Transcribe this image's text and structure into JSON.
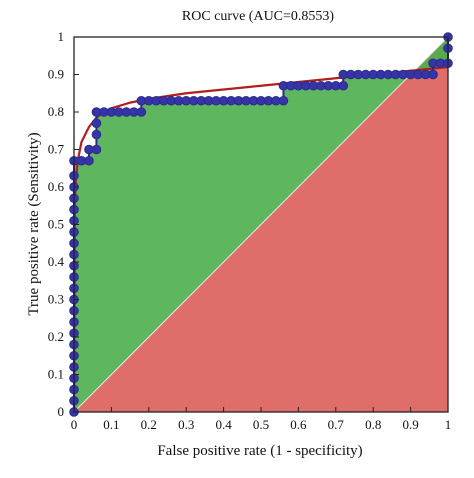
{
  "chart_data": {
    "type": "line",
    "title": "ROC curve (AUC=0.8553)",
    "xlabel": "False positive rate (1 - specificity)",
    "ylabel": "True positive rate (Sensitivity)",
    "xlim": [
      0,
      1
    ],
    "ylim": [
      0,
      1
    ],
    "x_ticks": [
      "0",
      "0.1",
      "0.2",
      "0.3",
      "0.4",
      "0.5",
      "0.6",
      "0.7",
      "0.8",
      "0.9",
      "1"
    ],
    "y_ticks": [
      "0",
      "0.1",
      "0.2",
      "0.3",
      "0.4",
      "0.5",
      "0.6",
      "0.7",
      "0.8",
      "0.9",
      "1"
    ],
    "grid": false,
    "colors": {
      "empirical": "#2b2a8c",
      "marker_fill": "#3535a8",
      "fitted": "#b01e1e",
      "area_above_diagonal": "#4cae4c",
      "area_below_diagonal": "#d9534f"
    },
    "series": [
      {
        "type": "step_scatter",
        "points": [
          [
            0,
            0
          ],
          [
            0,
            0.03
          ],
          [
            0,
            0.06
          ],
          [
            0,
            0.09
          ],
          [
            0,
            0.12
          ],
          [
            0,
            0.15
          ],
          [
            0,
            0.18
          ],
          [
            0,
            0.21
          ],
          [
            0,
            0.24
          ],
          [
            0,
            0.27
          ],
          [
            0,
            0.3
          ],
          [
            0,
            0.33
          ],
          [
            0,
            0.36
          ],
          [
            0,
            0.39
          ],
          [
            0,
            0.42
          ],
          [
            0,
            0.45
          ],
          [
            0,
            0.48
          ],
          [
            0,
            0.51
          ],
          [
            0,
            0.54
          ],
          [
            0,
            0.57
          ],
          [
            0,
            0.6
          ],
          [
            0,
            0.63
          ],
          [
            0,
            0.67
          ],
          [
            0.02,
            0.67
          ],
          [
            0.04,
            0.67
          ],
          [
            0.04,
            0.7
          ],
          [
            0.06,
            0.7
          ],
          [
            0.06,
            0.74
          ],
          [
            0.06,
            0.77
          ],
          [
            0.06,
            0.8
          ],
          [
            0.08,
            0.8
          ],
          [
            0.1,
            0.8
          ],
          [
            0.12,
            0.8
          ],
          [
            0.14,
            0.8
          ],
          [
            0.16,
            0.8
          ],
          [
            0.18,
            0.8
          ],
          [
            0.18,
            0.83
          ],
          [
            0.2,
            0.83
          ],
          [
            0.22,
            0.83
          ],
          [
            0.24,
            0.83
          ],
          [
            0.26,
            0.83
          ],
          [
            0.28,
            0.83
          ],
          [
            0.3,
            0.83
          ],
          [
            0.32,
            0.83
          ],
          [
            0.34,
            0.83
          ],
          [
            0.36,
            0.83
          ],
          [
            0.38,
            0.83
          ],
          [
            0.4,
            0.83
          ],
          [
            0.42,
            0.83
          ],
          [
            0.44,
            0.83
          ],
          [
            0.46,
            0.83
          ],
          [
            0.48,
            0.83
          ],
          [
            0.5,
            0.83
          ],
          [
            0.52,
            0.83
          ],
          [
            0.54,
            0.83
          ],
          [
            0.56,
            0.83
          ],
          [
            0.56,
            0.87
          ],
          [
            0.58,
            0.87
          ],
          [
            0.6,
            0.87
          ],
          [
            0.62,
            0.87
          ],
          [
            0.64,
            0.87
          ],
          [
            0.66,
            0.87
          ],
          [
            0.68,
            0.87
          ],
          [
            0.7,
            0.87
          ],
          [
            0.72,
            0.87
          ],
          [
            0.72,
            0.9
          ],
          [
            0.74,
            0.9
          ],
          [
            0.76,
            0.9
          ],
          [
            0.78,
            0.9
          ],
          [
            0.8,
            0.9
          ],
          [
            0.82,
            0.9
          ],
          [
            0.84,
            0.9
          ],
          [
            0.86,
            0.9
          ],
          [
            0.88,
            0.9
          ],
          [
            0.9,
            0.9
          ],
          [
            0.92,
            0.9
          ],
          [
            0.94,
            0.9
          ],
          [
            0.96,
            0.9
          ],
          [
            0.96,
            0.93
          ],
          [
            0.98,
            0.93
          ],
          [
            1.0,
            0.93
          ],
          [
            1.0,
            0.97
          ],
          [
            1.0,
            1.0
          ]
        ]
      },
      {
        "type": "fitted_curve",
        "points": [
          [
            0,
            0
          ],
          [
            0.002,
            0.55
          ],
          [
            0.005,
            0.62
          ],
          [
            0.01,
            0.67
          ],
          [
            0.02,
            0.72
          ],
          [
            0.04,
            0.76
          ],
          [
            0.06,
            0.785
          ],
          [
            0.08,
            0.8
          ],
          [
            0.1,
            0.81
          ],
          [
            0.15,
            0.825
          ],
          [
            0.2,
            0.835
          ],
          [
            0.3,
            0.85
          ],
          [
            0.4,
            0.86
          ],
          [
            0.5,
            0.87
          ],
          [
            0.6,
            0.88
          ],
          [
            0.7,
            0.89
          ],
          [
            0.8,
            0.9
          ],
          [
            0.9,
            0.91
          ],
          [
            1.0,
            0.92
          ]
        ]
      }
    ]
  }
}
